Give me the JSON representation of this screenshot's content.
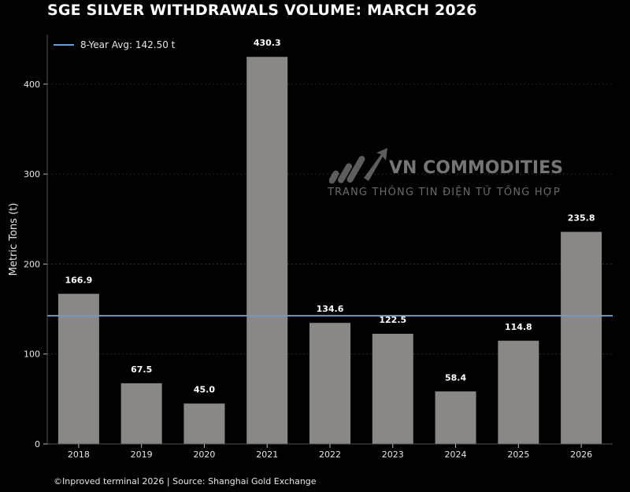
{
  "title": "SGE SILVER WITHDRAWALS VOLUME: MARCH 2026",
  "source": "©Inproved terminal 2026 | Source: Shanghai Gold Exchange",
  "watermark": {
    "name": "VN COMMODITIES",
    "subtitle": "TRANG THÔNG TIN ĐIỆN TỬ TỔNG HỢP"
  },
  "colors": {
    "background": "#000000",
    "bar": "#8a8884",
    "avg_line": "#6d9bd1",
    "text": "#ffffff"
  },
  "chart_data": {
    "type": "bar",
    "title": "SGE SILVER WITHDRAWALS VOLUME: MARCH 2026",
    "xlabel": "",
    "ylabel": "Metric Tons (t)",
    "categories": [
      "2018",
      "2019",
      "2020",
      "2021",
      "2022",
      "2023",
      "2024",
      "2025",
      "2026"
    ],
    "values": [
      166.9,
      67.5,
      45.0,
      430.3,
      134.6,
      122.5,
      58.4,
      114.8,
      235.8
    ],
    "labels": [
      "166.9",
      "67.5",
      "45.0",
      "430.3",
      "134.6",
      "122.5",
      "58.4",
      "114.8",
      "235.8"
    ],
    "ylim": [
      0,
      455
    ],
    "yticks": [
      0,
      100,
      200,
      300,
      400
    ],
    "ytick_labels": [
      "0",
      "100",
      "200",
      "300",
      "400"
    ],
    "grid": true,
    "reference_line": {
      "value": 142.5,
      "label": "8-Year Avg: 142.50 t"
    },
    "legend_position": "top-left"
  }
}
